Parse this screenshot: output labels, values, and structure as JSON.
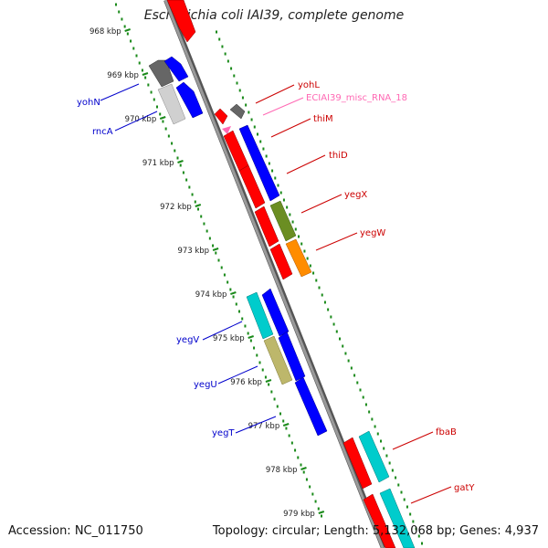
{
  "title": "Escherichia coli IAI39, complete genome",
  "footer": {
    "accession": "Accession: NC_011750",
    "topology": "Topology: circular; Length: 5,132,068 bp; Genes: 4,937"
  },
  "colors": {
    "backbone": "#8c8c8c",
    "ruler": "#1a8a1a",
    "forward_label": "#cc0000",
    "reverse_label": "#0000cc",
    "rna_label": "#ff69b4",
    "red": "#ff0000",
    "blue": "#0000ff",
    "gray": "#666666",
    "lightgray": "#c8c8c8",
    "cyan": "#00cccc",
    "olive": "#6b8e23",
    "orange": "#ff8c00",
    "khaki": "#bdb76b",
    "pink": "#ff69b4"
  },
  "kbp_ticks": [
    "968 kbp",
    "969 kbp",
    "970 kbp",
    "971 kbp",
    "972 kbp",
    "973 kbp",
    "974 kbp",
    "975 kbp",
    "976 kbp",
    "977 kbp",
    "978 kbp",
    "979 kbp"
  ],
  "labels": [
    {
      "text": "yohN",
      "kind": "reverse_label"
    },
    {
      "text": "rncA",
      "kind": "reverse_label"
    },
    {
      "text": "yohL",
      "kind": "forward_label"
    },
    {
      "text": "ECIAI39_misc_RNA_18",
      "kind": "rna_label"
    },
    {
      "text": "thiM",
      "kind": "forward_label"
    },
    {
      "text": "thiD",
      "kind": "forward_label"
    },
    {
      "text": "yegX",
      "kind": "forward_label"
    },
    {
      "text": "yegW",
      "kind": "forward_label"
    },
    {
      "text": "yegV",
      "kind": "reverse_label"
    },
    {
      "text": "yegU",
      "kind": "reverse_label"
    },
    {
      "text": "yegT",
      "kind": "reverse_label"
    },
    {
      "text": "fbaB",
      "kind": "forward_label"
    },
    {
      "text": "gatY",
      "kind": "forward_label"
    }
  ]
}
